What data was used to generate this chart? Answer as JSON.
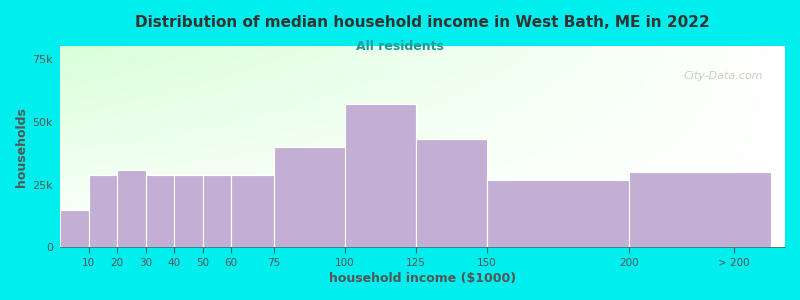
{
  "title": "Distribution of median household income in West Bath, ME in 2022",
  "subtitle": "All residents",
  "xlabel": "household income ($1000)",
  "ylabel": "households",
  "bar_color": "#c4afd4",
  "bar_edge_color": "#ffffff",
  "background_color": "#00eeee",
  "plot_bg_color_topleft": "#ddf0dd",
  "plot_bg_color_bottomright": "#f8f8f8",
  "title_color": "#333333",
  "subtitle_color": "#229999",
  "axis_label_color": "#555555",
  "tick_color": "#555555",
  "watermark_color": "#bbbbbb",
  "left_edges": [
    0,
    10,
    20,
    30,
    40,
    50,
    60,
    75,
    100,
    125,
    150,
    200
  ],
  "widths": [
    10,
    10,
    10,
    10,
    10,
    10,
    15,
    25,
    25,
    25,
    50,
    50
  ],
  "values": [
    15000,
    29000,
    31000,
    29000,
    29000,
    29000,
    29000,
    40000,
    57000,
    43000,
    27000,
    30000
  ],
  "ylim": [
    0,
    80000
  ],
  "yticks": [
    0,
    25000,
    50000,
    75000
  ],
  "xlim_max": 255,
  "xtick_positions": [
    10,
    20,
    30,
    40,
    50,
    60,
    75,
    100,
    125,
    150,
    200,
    237
  ],
  "xtick_labels": [
    "10",
    "20",
    "30",
    "40",
    "50",
    "60",
    "75",
    "100",
    "125",
    "150",
    "200",
    "> 200"
  ],
  "watermark": "City-Data.com"
}
